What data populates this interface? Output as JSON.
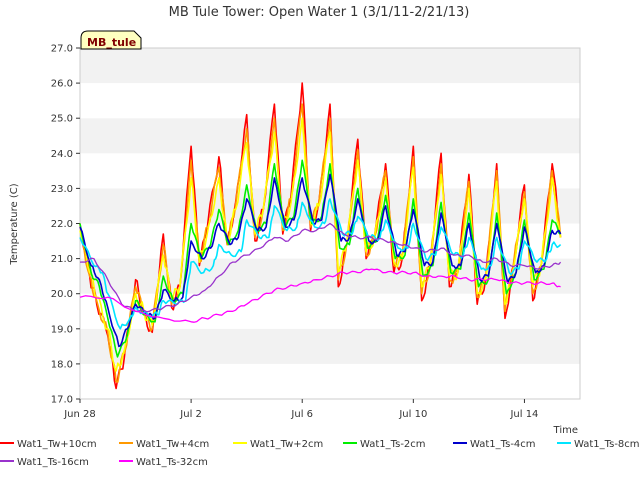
{
  "chart_data": {
    "type": "line",
    "title": "MB Tule Tower: Open Water 1 (3/1/11-2/21/13)",
    "xlabel": "Time",
    "ylabel": "Temperature (C)",
    "annotation": "MB_tule",
    "ylim": [
      17.0,
      27.0
    ],
    "xlim": [
      0,
      18
    ],
    "yticks": [
      17.0,
      18.0,
      19.0,
      20.0,
      21.0,
      22.0,
      23.0,
      24.0,
      25.0,
      26.0,
      27.0
    ],
    "ytick_labels": [
      "17.0",
      "18.0",
      "19.0",
      "20.0",
      "21.0",
      "22.0",
      "23.0",
      "24.0",
      "25.0",
      "26.0",
      "27.0"
    ],
    "xticks": [
      0,
      4,
      8,
      12,
      16
    ],
    "xtick_labels": [
      "Jun 28",
      "Jul 2",
      "Jul 6",
      "Jul 10",
      "Jul 14"
    ],
    "grid": "horizontal bands",
    "legend_position": "bottom",
    "series": [
      {
        "name": "Wat1_Tw+10cm",
        "color": "#ff0000",
        "x": [
          0,
          0.35,
          0.6,
          1.0,
          1.3,
          1.6,
          2.0,
          2.3,
          2.6,
          3.0,
          3.3,
          3.6,
          4.0,
          4.3,
          4.6,
          5.0,
          5.3,
          5.6,
          6.0,
          6.3,
          6.6,
          7.0,
          7.3,
          7.6,
          8.0,
          8.3,
          8.6,
          9.0,
          9.3,
          9.6,
          10.0,
          10.3,
          10.6,
          11.0,
          11.3,
          11.6,
          12.0,
          12.3,
          12.6,
          13.0,
          13.3,
          13.6,
          14.0,
          14.3,
          14.6,
          15.0,
          15.3,
          15.6,
          16.0,
          16.3,
          16.6,
          17.0,
          17.3
        ],
        "values": [
          22.0,
          20.5,
          19.7,
          18.8,
          17.3,
          18.2,
          20.4,
          19.4,
          18.9,
          21.7,
          19.6,
          20.2,
          24.2,
          20.8,
          22.0,
          23.9,
          21.4,
          22.6,
          25.1,
          21.5,
          22.4,
          25.4,
          21.7,
          22.8,
          26.0,
          21.8,
          22.6,
          25.4,
          20.2,
          21.4,
          24.4,
          21.0,
          21.6,
          23.7,
          20.6,
          21.0,
          24.2,
          19.8,
          20.8,
          24.0,
          20.2,
          20.6,
          23.4,
          19.7,
          20.4,
          23.7,
          19.3,
          20.8,
          23.1,
          19.8,
          20.8,
          23.7,
          21.6
        ]
      },
      {
        "name": "Wat1_Tw+4cm",
        "color": "#ff9900",
        "x": [
          0,
          0.35,
          0.6,
          1.0,
          1.3,
          1.6,
          2.0,
          2.3,
          2.6,
          3.0,
          3.3,
          3.6,
          4.0,
          4.3,
          4.6,
          5.0,
          5.3,
          5.6,
          6.0,
          6.3,
          6.6,
          7.0,
          7.3,
          7.6,
          8.0,
          8.3,
          8.6,
          9.0,
          9.3,
          9.6,
          10.0,
          10.3,
          10.6,
          11.0,
          11.3,
          11.6,
          12.0,
          12.3,
          12.6,
          13.0,
          13.3,
          13.6,
          14.0,
          14.3,
          14.6,
          15.0,
          15.3,
          15.6,
          16.0,
          16.3,
          16.6,
          17.0,
          17.3
        ],
        "values": [
          21.9,
          20.5,
          19.8,
          18.9,
          17.5,
          18.3,
          20.2,
          19.4,
          19.0,
          21.4,
          19.7,
          20.2,
          23.8,
          20.9,
          21.9,
          23.6,
          21.4,
          22.5,
          24.7,
          21.6,
          22.4,
          25.0,
          21.8,
          22.7,
          25.4,
          21.9,
          22.6,
          25.0,
          20.4,
          21.4,
          24.1,
          21.1,
          21.6,
          23.5,
          20.8,
          21.0,
          23.9,
          20.0,
          20.8,
          23.7,
          20.4,
          20.6,
          23.2,
          19.9,
          20.4,
          23.5,
          19.5,
          20.8,
          22.9,
          20.0,
          20.8,
          23.5,
          21.6
        ]
      },
      {
        "name": "Wat1_Tw+2cm",
        "color": "#ffff00",
        "x": [
          0,
          0.35,
          0.6,
          1.0,
          1.3,
          1.6,
          2.0,
          2.3,
          2.6,
          3.0,
          3.3,
          3.6,
          4.0,
          4.3,
          4.6,
          5.0,
          5.3,
          5.6,
          6.0,
          6.3,
          6.6,
          7.0,
          7.3,
          7.6,
          8.0,
          8.3,
          8.6,
          9.0,
          9.3,
          9.6,
          10.0,
          10.3,
          10.6,
          11.0,
          11.3,
          11.6,
          12.0,
          12.3,
          12.6,
          13.0,
          13.3,
          13.6,
          14.0,
          14.3,
          14.6,
          15.0,
          15.3,
          15.6,
          16.0,
          16.3,
          16.6,
          17.0,
          17.3
        ],
        "values": [
          21.8,
          20.6,
          19.9,
          19.0,
          17.8,
          18.4,
          20.0,
          19.5,
          19.1,
          21.1,
          19.8,
          20.2,
          23.3,
          20.9,
          21.8,
          23.3,
          21.5,
          22.4,
          24.3,
          21.7,
          22.4,
          24.6,
          21.9,
          22.6,
          25.0,
          22.0,
          22.5,
          24.6,
          20.6,
          21.4,
          23.8,
          21.2,
          21.6,
          23.3,
          20.9,
          21.0,
          23.6,
          20.2,
          20.8,
          23.4,
          20.5,
          20.6,
          23.0,
          20.0,
          20.4,
          23.2,
          19.7,
          20.7,
          22.7,
          20.2,
          20.8,
          23.3,
          21.6
        ]
      },
      {
        "name": "Wat1_Ts-2cm",
        "color": "#00ee00",
        "x": [
          0,
          0.4,
          0.7,
          1.0,
          1.35,
          1.7,
          2.0,
          2.35,
          2.7,
          3.0,
          3.35,
          3.7,
          4.0,
          4.35,
          4.7,
          5.0,
          5.35,
          5.7,
          6.0,
          6.35,
          6.7,
          7.0,
          7.35,
          7.7,
          8.0,
          8.35,
          8.7,
          9.0,
          9.35,
          9.7,
          10.0,
          10.35,
          10.7,
          11.0,
          11.35,
          11.7,
          12.0,
          12.35,
          12.7,
          13.0,
          13.35,
          13.7,
          14.0,
          14.35,
          14.7,
          15.0,
          15.35,
          15.7,
          16.0,
          16.35,
          16.7,
          17.0,
          17.3
        ],
        "values": [
          22.0,
          20.6,
          20.2,
          19.3,
          18.2,
          18.8,
          19.8,
          19.4,
          19.2,
          20.5,
          19.8,
          20.0,
          22.0,
          21.0,
          21.4,
          22.4,
          21.4,
          21.8,
          23.1,
          21.8,
          22.0,
          23.7,
          21.9,
          22.2,
          23.8,
          22.0,
          22.2,
          23.7,
          21.3,
          21.4,
          23.0,
          21.3,
          21.5,
          22.8,
          21.0,
          21.1,
          22.7,
          20.5,
          20.8,
          22.6,
          20.6,
          20.7,
          22.3,
          20.2,
          20.4,
          22.3,
          20.0,
          20.6,
          22.1,
          20.4,
          20.7,
          22.1,
          21.7
        ]
      },
      {
        "name": "Wat1_Ts-4cm",
        "color": "#0000cc",
        "x": [
          0,
          0.4,
          0.7,
          1.0,
          1.4,
          1.7,
          2.0,
          2.4,
          2.7,
          3.0,
          3.4,
          3.7,
          4.0,
          4.4,
          4.7,
          5.0,
          5.4,
          5.7,
          6.0,
          6.4,
          6.7,
          7.0,
          7.4,
          7.7,
          8.0,
          8.4,
          8.7,
          9.0,
          9.4,
          9.7,
          10.0,
          10.4,
          10.7,
          11.0,
          11.4,
          11.7,
          12.0,
          12.4,
          12.7,
          13.0,
          13.4,
          13.7,
          14.0,
          14.4,
          14.7,
          15.0,
          15.4,
          15.7,
          16.0,
          16.4,
          16.7,
          17.0,
          17.3
        ],
        "values": [
          21.9,
          20.8,
          20.4,
          19.6,
          18.5,
          19.0,
          19.7,
          19.4,
          19.3,
          20.1,
          19.8,
          19.9,
          21.5,
          21.0,
          21.3,
          22.0,
          21.4,
          21.6,
          22.7,
          21.8,
          21.9,
          23.3,
          21.9,
          22.1,
          23.3,
          22.0,
          22.1,
          23.4,
          21.5,
          21.6,
          22.7,
          21.5,
          21.5,
          22.5,
          21.1,
          21.2,
          22.4,
          20.8,
          20.9,
          22.3,
          20.8,
          20.8,
          22.0,
          20.4,
          20.5,
          22.0,
          20.3,
          20.6,
          21.9,
          20.6,
          20.8,
          21.8,
          21.7
        ]
      },
      {
        "name": "Wat1_Ts-8cm",
        "color": "#00e5ff",
        "x": [
          0,
          0.5,
          0.8,
          1.0,
          1.45,
          1.8,
          2.0,
          2.45,
          2.8,
          3.0,
          3.45,
          3.8,
          4.0,
          4.45,
          4.8,
          5.0,
          5.45,
          5.8,
          6.0,
          6.45,
          6.8,
          7.0,
          7.45,
          7.8,
          8.0,
          8.45,
          8.8,
          9.0,
          9.45,
          9.8,
          10.0,
          10.45,
          10.8,
          11.0,
          11.45,
          11.8,
          12.0,
          12.45,
          12.8,
          13.0,
          13.45,
          13.8,
          14.0,
          14.45,
          14.8,
          15.0,
          15.45,
          15.8,
          16.0,
          16.45,
          16.8,
          17.0,
          17.3
        ],
        "values": [
          21.6,
          20.8,
          20.6,
          20.0,
          19.0,
          19.3,
          19.6,
          19.4,
          19.4,
          19.8,
          19.7,
          19.8,
          20.9,
          20.6,
          20.8,
          21.4,
          21.1,
          21.2,
          22.1,
          21.6,
          21.6,
          22.5,
          21.8,
          21.9,
          22.6,
          21.9,
          22.0,
          22.7,
          21.7,
          21.7,
          22.2,
          21.6,
          21.6,
          22.1,
          21.3,
          21.3,
          22.0,
          21.0,
          21.1,
          21.9,
          21.1,
          21.1,
          21.6,
          20.7,
          20.8,
          21.6,
          20.6,
          20.7,
          21.5,
          20.9,
          21.0,
          21.4,
          21.4
        ]
      },
      {
        "name": "Wat1_Ts-16cm",
        "color": "#9933cc",
        "x": [
          0,
          0.5,
          1.0,
          1.5,
          2.0,
          2.5,
          3.0,
          3.5,
          4.0,
          4.5,
          5.0,
          5.5,
          6.0,
          6.5,
          7.0,
          7.5,
          8.0,
          8.5,
          9.0,
          9.5,
          10.0,
          10.5,
          11.0,
          11.5,
          12.0,
          12.5,
          13.0,
          13.5,
          14.0,
          14.5,
          15.0,
          15.5,
          16.0,
          16.5,
          17.0,
          17.3
        ],
        "values": [
          20.9,
          21.0,
          20.4,
          19.7,
          19.5,
          19.5,
          19.6,
          19.7,
          19.9,
          20.1,
          20.5,
          20.9,
          21.1,
          21.3,
          21.6,
          21.5,
          21.8,
          21.8,
          22.0,
          21.7,
          21.6,
          21.6,
          21.5,
          21.4,
          21.3,
          21.2,
          21.3,
          21.1,
          21.1,
          20.9,
          21.0,
          20.8,
          20.8,
          20.7,
          20.8,
          20.9
        ]
      },
      {
        "name": "Wat1_Ts-32cm",
        "color": "#ff00ff",
        "x": [
          0,
          1.0,
          2.0,
          3.0,
          4.0,
          4.5,
          5.0,
          5.5,
          6.0,
          6.5,
          7.0,
          7.5,
          8.0,
          8.5,
          9.0,
          9.5,
          10.0,
          10.5,
          11.0,
          11.5,
          12.0,
          12.5,
          13.0,
          13.5,
          14.0,
          14.5,
          15.0,
          15.5,
          16.0,
          16.5,
          17.0,
          17.3
        ],
        "values": [
          19.9,
          19.9,
          19.5,
          19.3,
          19.2,
          19.3,
          19.4,
          19.5,
          19.7,
          19.9,
          20.1,
          20.2,
          20.3,
          20.4,
          20.5,
          20.6,
          20.6,
          20.7,
          20.6,
          20.6,
          20.6,
          20.5,
          20.5,
          20.5,
          20.4,
          20.4,
          20.4,
          20.3,
          20.3,
          20.3,
          20.3,
          20.2
        ]
      }
    ]
  }
}
